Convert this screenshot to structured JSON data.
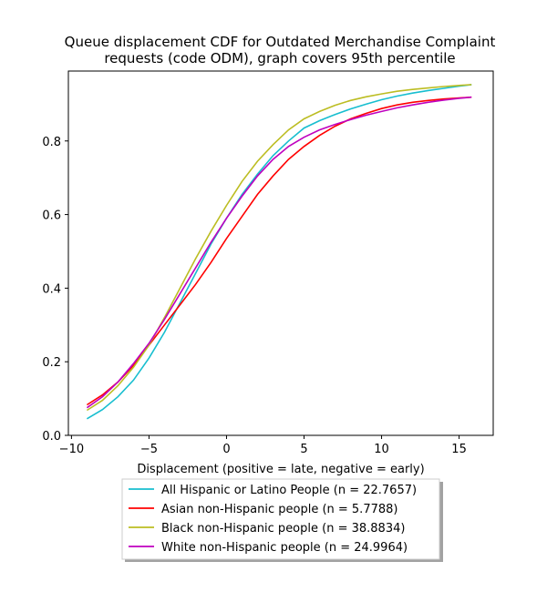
{
  "chart_data": {
    "type": "line",
    "title": "Queue displacement CDF for Outdated Merchandise Complaint requests (code ODM), graph covers 95th percentile",
    "title_lines": [
      "Queue displacement CDF for Outdated Merchandise Complaint",
      "requests (code ODM), graph covers 95th percentile"
    ],
    "xlabel": "Displacement (positive = late, negative = early)",
    "ylabel": "",
    "xlim": [
      -10.2,
      17.2
    ],
    "ylim": [
      0,
      0.99
    ],
    "xticks": [
      -10,
      -5,
      0,
      5,
      10,
      15
    ],
    "yticks": [
      0.0,
      0.2,
      0.4,
      0.6,
      0.8
    ],
    "xtick_labels": [
      "−10",
      "−5",
      "0",
      "5",
      "10",
      "15"
    ],
    "ytick_labels": [
      "0.0",
      "0.2",
      "0.4",
      "0.6",
      "0.8"
    ],
    "grid": false,
    "legend_position": "below",
    "series": [
      {
        "name": "All Hispanic or Latino People (n = 22.7657)",
        "color": "#17becf",
        "x": [
          -9,
          -8,
          -7,
          -6,
          -5,
          -4,
          -3,
          -2,
          -1,
          0,
          1,
          2,
          3,
          4,
          5,
          6,
          7,
          8,
          9,
          10,
          11,
          12,
          13,
          14,
          15,
          15.8
        ],
        "y": [
          0.045,
          0.07,
          0.105,
          0.15,
          0.21,
          0.28,
          0.36,
          0.44,
          0.52,
          0.59,
          0.655,
          0.71,
          0.76,
          0.8,
          0.835,
          0.855,
          0.872,
          0.887,
          0.9,
          0.912,
          0.922,
          0.93,
          0.937,
          0.943,
          0.949,
          0.953
        ]
      },
      {
        "name": "Asian non-Hispanic people (n = 5.7788)",
        "color": "#ff0000",
        "x": [
          -9,
          -8,
          -7,
          -6,
          -5,
          -4,
          -3,
          -2,
          -1,
          0,
          1,
          2,
          3,
          4,
          5,
          6,
          7,
          8,
          9,
          10,
          11,
          12,
          13,
          14,
          15,
          15.8
        ],
        "y": [
          0.083,
          0.11,
          0.145,
          0.19,
          0.245,
          0.3,
          0.355,
          0.41,
          0.47,
          0.535,
          0.595,
          0.655,
          0.705,
          0.75,
          0.785,
          0.815,
          0.84,
          0.86,
          0.875,
          0.888,
          0.898,
          0.905,
          0.91,
          0.914,
          0.917,
          0.919
        ]
      },
      {
        "name": "Black non-Hispanic people (n = 38.8834)",
        "color": "#bcbd22",
        "x": [
          -9,
          -8,
          -7,
          -6,
          -5,
          -4,
          -3,
          -2,
          -1,
          0,
          1,
          2,
          3,
          4,
          5,
          6,
          7,
          8,
          9,
          10,
          11,
          12,
          13,
          14,
          15,
          15.8
        ],
        "y": [
          0.068,
          0.095,
          0.135,
          0.185,
          0.245,
          0.32,
          0.4,
          0.48,
          0.555,
          0.625,
          0.69,
          0.745,
          0.79,
          0.83,
          0.86,
          0.88,
          0.897,
          0.91,
          0.92,
          0.928,
          0.935,
          0.94,
          0.944,
          0.948,
          0.951,
          0.953
        ]
      },
      {
        "name": "White non-Hispanic people (n = 24.9964)",
        "color": "#bf00bf",
        "x": [
          -9,
          -8,
          -7,
          -6,
          -5,
          -4,
          -3,
          -2,
          -1,
          0,
          1,
          2,
          3,
          4,
          5,
          6,
          7,
          8,
          9,
          10,
          11,
          12,
          13,
          14,
          15,
          15.8
        ],
        "y": [
          0.075,
          0.105,
          0.145,
          0.195,
          0.25,
          0.315,
          0.385,
          0.455,
          0.525,
          0.59,
          0.65,
          0.705,
          0.75,
          0.785,
          0.81,
          0.83,
          0.845,
          0.858,
          0.87,
          0.88,
          0.89,
          0.898,
          0.905,
          0.911,
          0.916,
          0.919
        ]
      }
    ]
  }
}
